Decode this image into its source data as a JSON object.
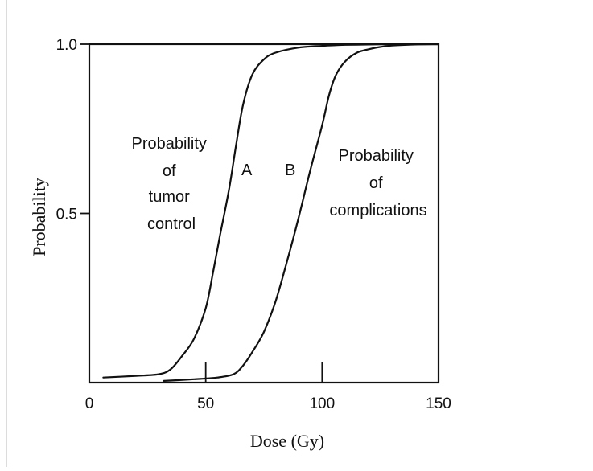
{
  "chart_data": {
    "type": "line",
    "xlabel": "Dose (Gy)",
    "ylabel": "Probability",
    "xlim": [
      0,
      150
    ],
    "ylim": [
      0,
      1
    ],
    "xticks": [
      0,
      50,
      100,
      150
    ],
    "yticks": [
      0.5,
      1.0
    ],
    "xtick_labels": [
      "0",
      "50",
      "100",
      "150"
    ],
    "ytick_labels": [
      "0.5",
      "1.0"
    ],
    "grid": false,
    "series": [
      {
        "name": "A",
        "color": "#111111",
        "x": [
          6,
          20,
          30,
          35,
          40,
          45,
          50,
          53,
          56,
          60,
          63,
          66,
          70,
          75,
          80,
          90,
          100,
          110,
          120,
          130,
          140,
          150
        ],
        "y": [
          0.015,
          0.02,
          0.025,
          0.04,
          0.08,
          0.13,
          0.22,
          0.32,
          0.43,
          0.57,
          0.7,
          0.82,
          0.91,
          0.955,
          0.975,
          0.99,
          0.995,
          0.998,
          0.999,
          1.0,
          1.0,
          1.0
        ]
      },
      {
        "name": "B",
        "color": "#111111",
        "x": [
          32,
          45,
          55,
          62,
          66,
          70,
          75,
          80,
          85,
          90,
          95,
          100,
          103,
          106,
          110,
          115,
          120,
          125,
          130,
          140,
          150
        ],
        "y": [
          0.005,
          0.01,
          0.015,
          0.025,
          0.05,
          0.09,
          0.15,
          0.24,
          0.36,
          0.49,
          0.63,
          0.76,
          0.85,
          0.91,
          0.95,
          0.975,
          0.985,
          0.992,
          0.996,
          0.999,
          1.0
        ]
      }
    ],
    "annotations": [
      {
        "id": "tumor",
        "lines": [
          "Probability",
          "of",
          "tumor",
          "control"
        ]
      },
      {
        "id": "complications",
        "lines": [
          "Probability",
          "of",
          "complications"
        ]
      }
    ]
  }
}
